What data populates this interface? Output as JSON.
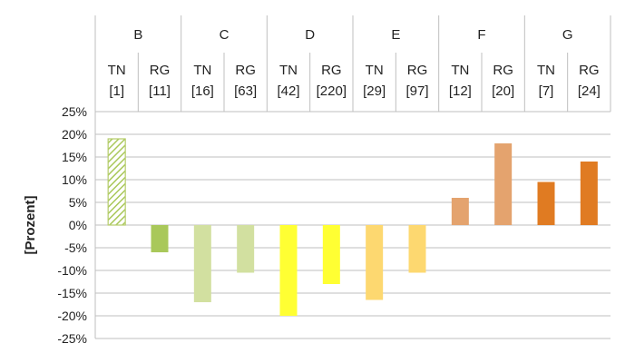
{
  "chart_data": {
    "type": "bar",
    "ylabel": "[Prozent]",
    "ylim": [
      -25,
      25
    ],
    "yticks": [
      "25%",
      "20%",
      "15%",
      "10%",
      "5%",
      "0%",
      "-5%",
      "-10%",
      "-15%",
      "-20%",
      "-25%"
    ],
    "grid": true,
    "groups": [
      {
        "name": "B",
        "bars": [
          {
            "label": "TN",
            "n": "[1]",
            "value": 19,
            "color": "#b5cc6a",
            "hatched": true
          },
          {
            "label": "RG",
            "n": "[11]",
            "value": -6,
            "color": "#a9c85a",
            "hatched": false
          }
        ]
      },
      {
        "name": "C",
        "bars": [
          {
            "label": "TN",
            "n": "[16]",
            "value": -17,
            "color": "#d2e0a0",
            "hatched": false
          },
          {
            "label": "RG",
            "n": "[63]",
            "value": -10.5,
            "color": "#d2e0a0",
            "hatched": false
          }
        ]
      },
      {
        "name": "D",
        "bars": [
          {
            "label": "TN",
            "n": "[42]",
            "value": -20,
            "color": "#ffff33",
            "hatched": false
          },
          {
            "label": "RG",
            "n": "[220]",
            "value": -13,
            "color": "#ffff33",
            "hatched": false
          }
        ]
      },
      {
        "name": "E",
        "bars": [
          {
            "label": "TN",
            "n": "[29]",
            "value": -16.5,
            "color": "#fdd870",
            "hatched": false
          },
          {
            "label": "RG",
            "n": "[97]",
            "value": -10.5,
            "color": "#fdd870",
            "hatched": false
          }
        ]
      },
      {
        "name": "F",
        "bars": [
          {
            "label": "TN",
            "n": "[12]",
            "value": 6,
            "color": "#e4a36e",
            "hatched": false
          },
          {
            "label": "RG",
            "n": "[20]",
            "value": 18,
            "color": "#e4a36e",
            "hatched": false
          }
        ]
      },
      {
        "name": "G",
        "bars": [
          {
            "label": "TN",
            "n": "[7]",
            "value": 9.5,
            "color": "#e07b22",
            "hatched": false
          },
          {
            "label": "RG",
            "n": "[24]",
            "value": 14,
            "color": "#e07b22",
            "hatched": false
          }
        ]
      }
    ]
  }
}
